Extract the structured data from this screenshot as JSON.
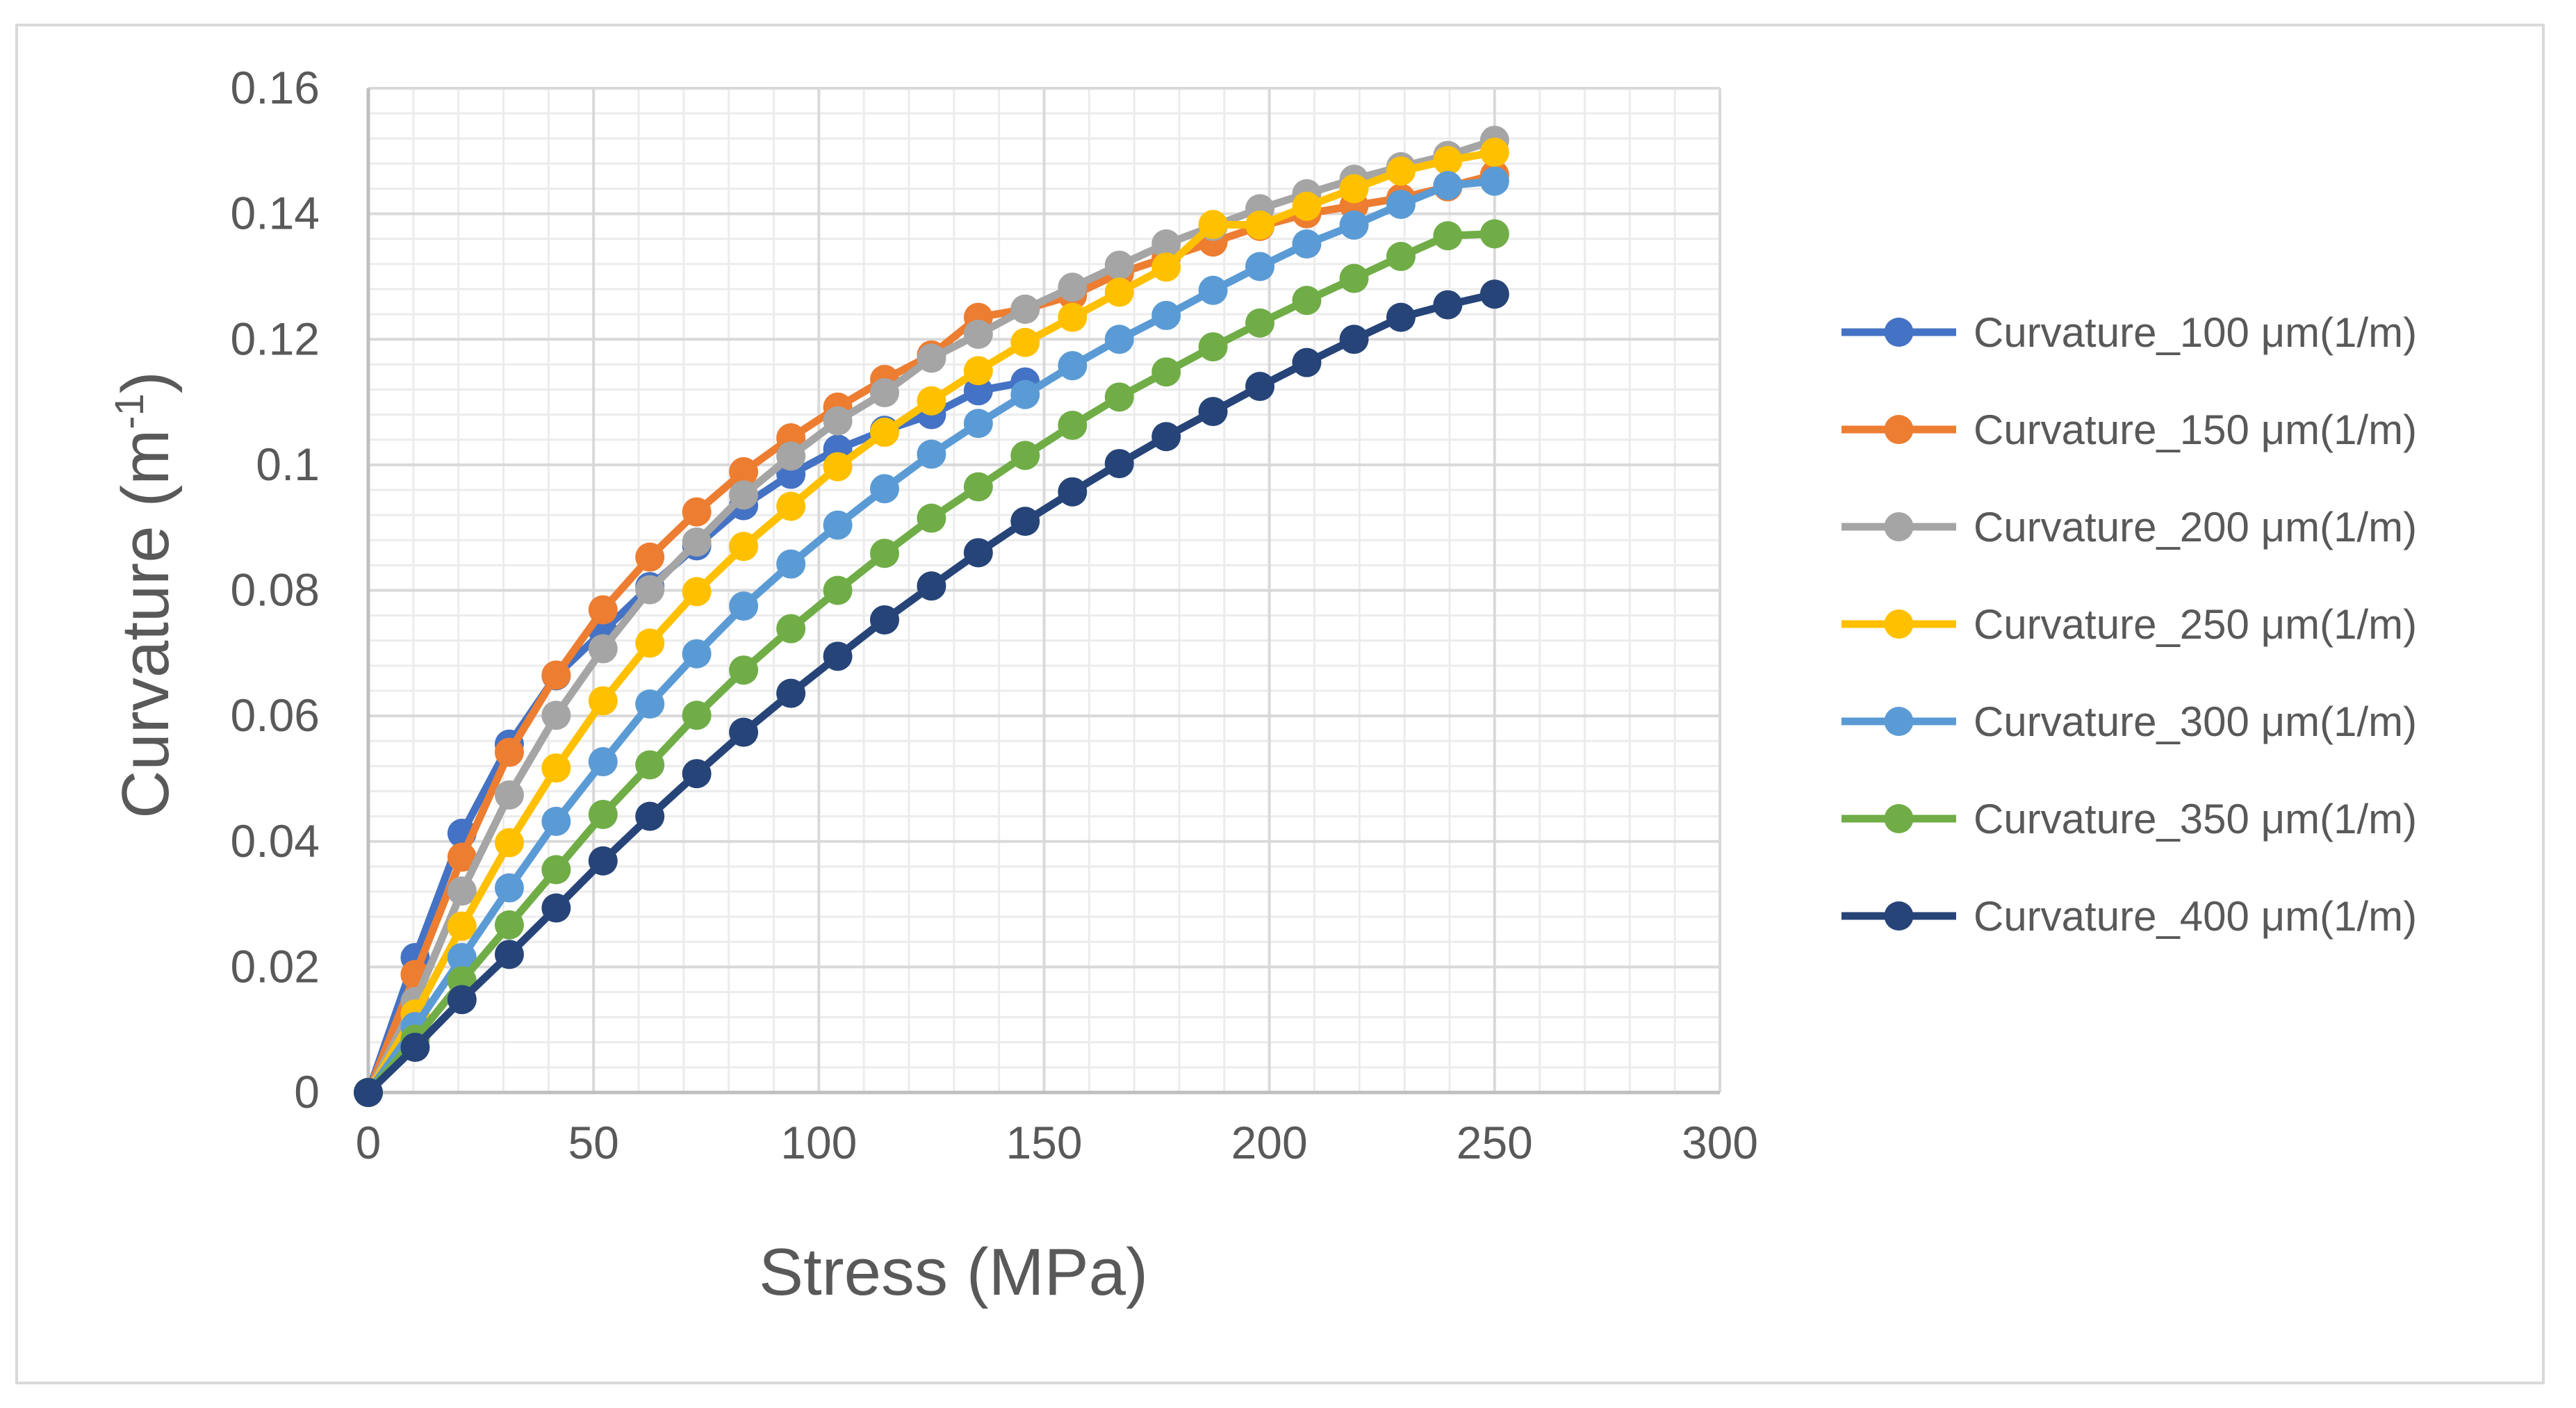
{
  "chart_data": {
    "type": "line",
    "title": "",
    "xlabel": "Stress (MPa)",
    "ylabel": {
      "base": "Curvature (m",
      "sup": "-1",
      "close": ")"
    },
    "xlim": [
      0,
      300
    ],
    "ylim": [
      0,
      0.16
    ],
    "xticks": [
      0,
      50,
      100,
      150,
      200,
      250,
      300
    ],
    "yticks": [
      0,
      0.02,
      0.04,
      0.06,
      0.08,
      0.1,
      0.12,
      0.14,
      0.16
    ],
    "xtick_labels": [
      "0",
      "50",
      "100",
      "150",
      "200",
      "250",
      "300"
    ],
    "ytick_labels": [
      "0",
      "0.02",
      "0.04",
      "0.06",
      "0.08",
      "0.1",
      "0.12",
      "0.14",
      "0.16"
    ],
    "grid": true,
    "legend_position": "right",
    "x": [
      0,
      10.4,
      20.8,
      31.3,
      41.7,
      52.1,
      62.5,
      72.9,
      83.3,
      93.8,
      104.2,
      114.6,
      125,
      135.4,
      145.8,
      156.3,
      166.7,
      177.1,
      187.5,
      197.9,
      208.3,
      218.8,
      229.2,
      239.6,
      250
    ],
    "series": [
      {
        "name": "Curvature_100 μm(1/m)",
        "color": "#4472C4",
        "values": [
          0,
          0.0215,
          0.0413,
          0.0555,
          0.0664,
          0.0735,
          0.0806,
          0.0871,
          0.0935,
          0.0985,
          0.1025,
          0.1055,
          0.108,
          0.1118,
          0.1132,
          null,
          null,
          null,
          null,
          null,
          null,
          null,
          null,
          null,
          null
        ]
      },
      {
        "name": "Curvature_150 μm(1/m)",
        "color": "#ED7D31",
        "values": [
          0,
          0.0188,
          0.0375,
          0.0542,
          0.0665,
          0.0769,
          0.0853,
          0.0925,
          0.0989,
          0.1043,
          0.1092,
          0.1136,
          0.1175,
          0.1235,
          0.1248,
          0.127,
          0.1305,
          0.133,
          0.1355,
          0.138,
          0.14,
          0.1413,
          0.1425,
          0.1443,
          0.1462
        ]
      },
      {
        "name": "Curvature_200 μm(1/m)",
        "color": "#A5A5A5",
        "values": [
          0,
          0.0145,
          0.0321,
          0.0474,
          0.0601,
          0.0707,
          0.0801,
          0.0877,
          0.0952,
          0.1014,
          0.107,
          0.1115,
          0.117,
          0.1208,
          0.1248,
          0.1283,
          0.1318,
          0.1352,
          0.138,
          0.1408,
          0.1432,
          0.1455,
          0.1475,
          0.1493,
          0.1517
        ]
      },
      {
        "name": "Curvature_250 μm(1/m)",
        "color": "#FFC000",
        "values": [
          0,
          0.0125,
          0.0265,
          0.0398,
          0.0517,
          0.0624,
          0.0716,
          0.0798,
          0.087,
          0.0934,
          0.0997,
          0.1052,
          0.1102,
          0.115,
          0.1195,
          0.1235,
          0.1275,
          0.1315,
          0.1383,
          0.1382,
          0.1412,
          0.144,
          0.1468,
          0.1485,
          0.1498
        ]
      },
      {
        "name": "Curvature_300 μm(1/m)",
        "color": "#5B9BD5",
        "values": [
          0,
          0.0105,
          0.0215,
          0.0326,
          0.0432,
          0.0527,
          0.0619,
          0.0699,
          0.0775,
          0.0842,
          0.0904,
          0.0962,
          0.1017,
          0.1066,
          0.1112,
          0.1158,
          0.12,
          0.1238,
          0.1278,
          0.1316,
          0.1352,
          0.1382,
          0.1415,
          0.1445,
          0.1452
        ]
      },
      {
        "name": "Curvature_350 μm(1/m)",
        "color": "#70AD47",
        "values": [
          0,
          0.0085,
          0.0178,
          0.0267,
          0.0355,
          0.0443,
          0.0522,
          0.0601,
          0.0673,
          0.0739,
          0.08,
          0.0859,
          0.0915,
          0.0965,
          0.1015,
          0.1063,
          0.1108,
          0.1148,
          0.1188,
          0.1226,
          0.1262,
          0.1297,
          0.1332,
          0.1365,
          0.1368
        ]
      },
      {
        "name": "Curvature_400 μm(1/m)",
        "color": "#264478",
        "values": [
          0,
          0.0072,
          0.0148,
          0.022,
          0.0294,
          0.0369,
          0.044,
          0.0508,
          0.0574,
          0.0636,
          0.0695,
          0.0753,
          0.0807,
          0.086,
          0.091,
          0.0957,
          0.1002,
          0.1045,
          0.1085,
          0.1125,
          0.1163,
          0.12,
          0.1235,
          0.1255,
          0.1272
        ]
      }
    ]
  }
}
